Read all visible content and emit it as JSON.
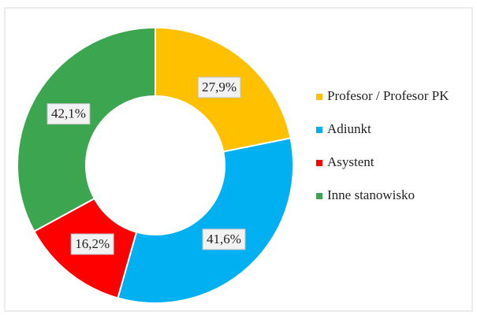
{
  "chart_data": {
    "type": "donut",
    "categories": [
      "Profesor / Profesor PK",
      "Adiunkt",
      "Asystent",
      "Inne stanowisko"
    ],
    "values": [
      27.9,
      41.6,
      16.2,
      42.1
    ],
    "value_labels": [
      "27,9%",
      "41,6%",
      "16,2%",
      "42,1%"
    ],
    "colors": [
      "#ffc000",
      "#00b0f0",
      "#ff0000",
      "#3ba54f"
    ],
    "legend": "right"
  }
}
